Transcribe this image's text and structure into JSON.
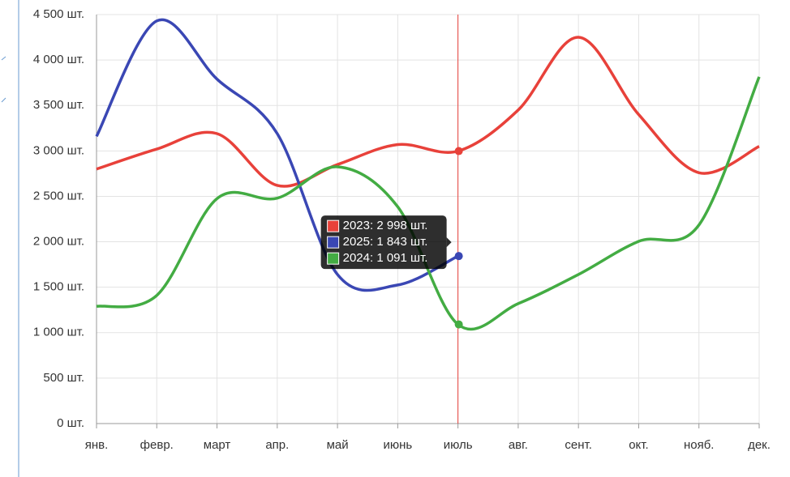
{
  "chart_data": {
    "type": "line",
    "categories": [
      "янв.",
      "февр.",
      "март",
      "апр.",
      "май",
      "июнь",
      "июль",
      "авг.",
      "сент.",
      "окт.",
      "нояб.",
      "дек."
    ],
    "series": [
      {
        "name": "2023",
        "color": "#e8413a",
        "values": [
          2800,
          3020,
          3190,
          2620,
          2850,
          3070,
          2998,
          3450,
          4250,
          3400,
          2760,
          3050
        ]
      },
      {
        "name": "2025",
        "color": "#3a47b4",
        "values": [
          3160,
          4430,
          3790,
          3190,
          1640,
          1525,
          1843,
          null,
          null,
          null,
          null,
          null
        ]
      },
      {
        "name": "2024",
        "color": "#43ac43",
        "values": [
          1290,
          1410,
          2475,
          2480,
          2825,
          2385,
          1091,
          1320,
          1640,
          2005,
          2185,
          3815
        ]
      }
    ],
    "ylim": [
      0,
      4500
    ],
    "yticks": [
      {
        "value": 0,
        "label": "0 шт."
      },
      {
        "value": 500,
        "label": "500 шт."
      },
      {
        "value": 1000,
        "label": "1 000 шт."
      },
      {
        "value": 1500,
        "label": "1 500 шт."
      },
      {
        "value": 2000,
        "label": "2 000 шт."
      },
      {
        "value": 2500,
        "label": "2 500 шт."
      },
      {
        "value": 3000,
        "label": "3 000 шт."
      },
      {
        "value": 3500,
        "label": "3 500 шт."
      },
      {
        "value": 4000,
        "label": "4 000 шт."
      },
      {
        "value": 4500,
        "label": "4 500 шт."
      }
    ],
    "grid": true,
    "tooltip": [
      "2023: 2 998 шт.",
      "2025: 1 843 шт.",
      "2024: 1 091 шт."
    ]
  }
}
